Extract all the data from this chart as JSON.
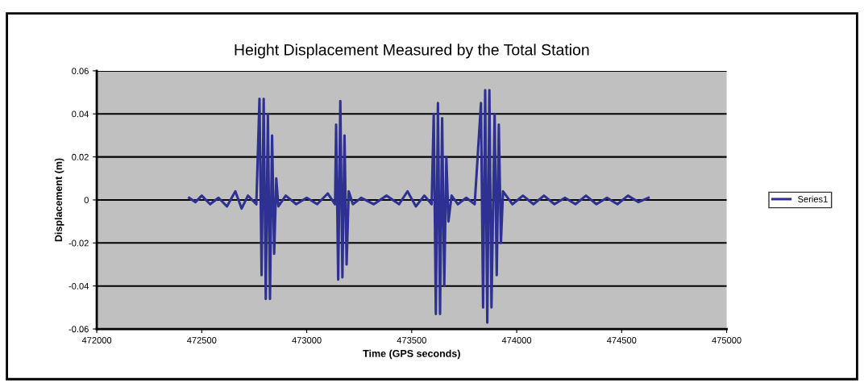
{
  "chart_data": {
    "type": "line",
    "title": "Height Displacement Measured by the Total Station",
    "xlabel": "Time (GPS seconds)",
    "ylabel": "Displacement (m)",
    "xlim": [
      472000,
      475000
    ],
    "xticks": [
      472000,
      472500,
      473000,
      473500,
      474000,
      474500,
      475000
    ],
    "ylim": [
      -0.06,
      0.06
    ],
    "yticks": [
      -0.06,
      -0.04,
      -0.02,
      0,
      0.02,
      0.04,
      0.06
    ],
    "grid": "y",
    "legend": "right",
    "series": [
      {
        "name": "Series1",
        "color": "#2e3192",
        "x": [
          472440,
          472470,
          472500,
          472540,
          472580,
          472620,
          472660,
          472690,
          472720,
          472760,
          472775,
          472785,
          472795,
          472805,
          472815,
          472825,
          472835,
          472845,
          472855,
          472865,
          472900,
          472950,
          473000,
          473050,
          473100,
          473135,
          473140,
          473150,
          473160,
          473170,
          473180,
          473190,
          473200,
          473220,
          473260,
          473320,
          473380,
          473440,
          473480,
          473520,
          473560,
          473595,
          473605,
          473615,
          473625,
          473635,
          473645,
          473655,
          473665,
          473675,
          473690,
          473720,
          473760,
          473800,
          473830,
          473840,
          473850,
          473860,
          473870,
          473880,
          473895,
          473905,
          473915,
          473925,
          473935,
          473980,
          474030,
          474080,
          474130,
          474180,
          474230,
          474280,
          474330,
          474380,
          474430,
          474480,
          474530,
          474580,
          474628
        ],
        "values": [
          0.001,
          -0.001,
          0.002,
          -0.002,
          0.001,
          -0.003,
          0.004,
          -0.004,
          0.002,
          -0.002,
          0.047,
          -0.035,
          0.047,
          -0.046,
          0.04,
          -0.046,
          0.03,
          -0.025,
          0.01,
          -0.003,
          0.002,
          -0.002,
          0.001,
          -0.002,
          0.003,
          -0.002,
          0.035,
          -0.037,
          0.046,
          -0.036,
          0.03,
          -0.03,
          0.004,
          -0.002,
          0.001,
          -0.002,
          0.002,
          -0.002,
          0.004,
          -0.003,
          0.002,
          -0.002,
          0.04,
          -0.053,
          0.045,
          -0.053,
          0.038,
          -0.04,
          0.02,
          -0.01,
          0.002,
          -0.002,
          0.001,
          -0.002,
          0.045,
          -0.05,
          0.051,
          -0.057,
          0.051,
          -0.05,
          0.04,
          -0.035,
          0.035,
          -0.02,
          0.004,
          -0.002,
          0.002,
          -0.002,
          0.002,
          -0.002,
          0.001,
          -0.002,
          0.002,
          -0.002,
          0.001,
          -0.002,
          0.002,
          -0.001,
          0.001
        ]
      }
    ]
  }
}
